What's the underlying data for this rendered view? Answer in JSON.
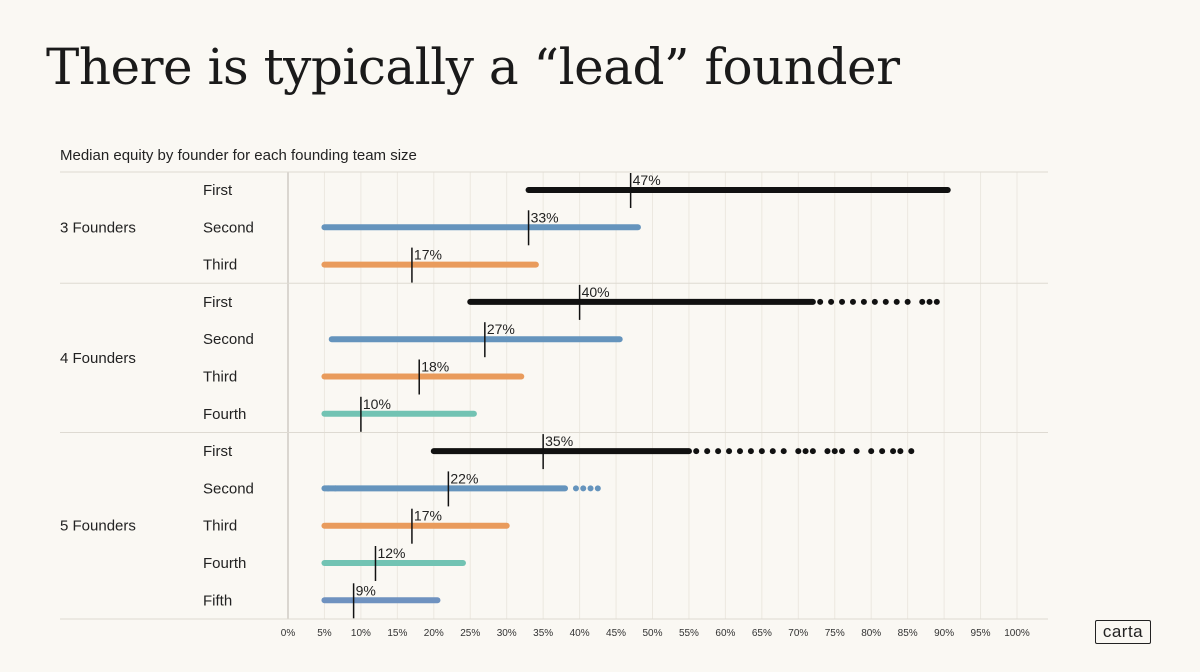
{
  "title": "There is typically a “lead” founder",
  "logo": "carta",
  "chart_data": {
    "type": "range-strip",
    "subtitle": "Median equity by founder for each founding team size",
    "x_ticks": [
      "0%",
      "5%",
      "10%",
      "15%",
      "20%",
      "25%",
      "30%",
      "35%",
      "40%",
      "45%",
      "50%",
      "55%",
      "60%",
      "65%",
      "70%",
      "75%",
      "80%",
      "85%",
      "90%",
      "95%",
      "100%"
    ],
    "xlim": [
      0,
      100
    ],
    "colors": {
      "First": "#111111",
      "Second": "#6594bd",
      "Third": "#e99b5c",
      "Fourth": "#72c3b3",
      "Fifth": "#6f92c0"
    },
    "groups": [
      {
        "name": "3 Founders",
        "rows": [
          {
            "label": "First",
            "color": "#111111",
            "start": 33,
            "end": 90.5,
            "median": 47,
            "median_label": "47%",
            "outliers": []
          },
          {
            "label": "Second",
            "color": "#6594bd",
            "start": 5,
            "end": 48,
            "median": 33,
            "median_label": "33%",
            "outliers": []
          },
          {
            "label": "Third",
            "color": "#e99b5c",
            "start": 5,
            "end": 34,
            "median": 17,
            "median_label": "17%",
            "outliers": []
          }
        ]
      },
      {
        "name": "4 Founders",
        "rows": [
          {
            "label": "First",
            "color": "#111111",
            "start": 25,
            "end": 72,
            "median": 40,
            "median_label": "40%",
            "outliers": [
              73,
              74.5,
              76,
              77.5,
              79,
              80.5,
              82,
              83.5,
              85,
              87,
              88,
              89
            ]
          },
          {
            "label": "Second",
            "color": "#6594bd",
            "start": 6,
            "end": 45.5,
            "median": 27,
            "median_label": "27%",
            "outliers": []
          },
          {
            "label": "Third",
            "color": "#e99b5c",
            "start": 5,
            "end": 32,
            "median": 18,
            "median_label": "18%",
            "outliers": []
          },
          {
            "label": "Fourth",
            "color": "#72c3b3",
            "start": 5,
            "end": 25.5,
            "median": 10,
            "median_label": "10%",
            "outliers": []
          }
        ]
      },
      {
        "name": "5 Founders",
        "rows": [
          {
            "label": "First",
            "color": "#111111",
            "start": 20,
            "end": 55,
            "median": 35,
            "median_label": "35%",
            "outliers": [
              56,
              57.5,
              59,
              60.5,
              62,
              63.5,
              65,
              66.5,
              68,
              70,
              71,
              72,
              74,
              75,
              76,
              78,
              80,
              81.5,
              83,
              84,
              85.5
            ]
          },
          {
            "label": "Second",
            "color": "#6594bd",
            "start": 5,
            "end": 38,
            "median": 22,
            "median_label": "22%",
            "outliers": [
              5.5,
              6.5,
              39.5,
              40.5,
              41.5,
              42.5
            ]
          },
          {
            "label": "Third",
            "color": "#e99b5c",
            "start": 5,
            "end": 30,
            "median": 17,
            "median_label": "17%",
            "outliers": []
          },
          {
            "label": "Fourth",
            "color": "#72c3b3",
            "start": 5,
            "end": 24,
            "median": 12,
            "median_label": "12%",
            "outliers": []
          },
          {
            "label": "Fifth",
            "color": "#6f92c0",
            "start": 5,
            "end": 20.5,
            "median": 9,
            "median_label": "9%",
            "outliers": []
          }
        ]
      }
    ]
  }
}
